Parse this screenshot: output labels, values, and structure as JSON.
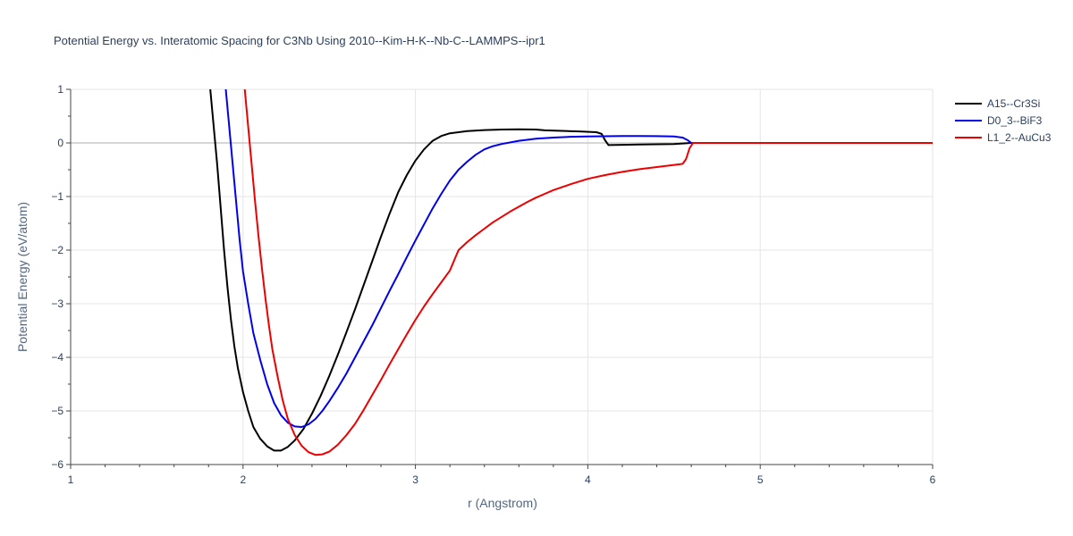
{
  "chart_data": {
    "type": "line",
    "title": "Potential Energy vs. Interatomic Spacing for C3Nb Using 2010--Kim-H-K--Nb-C--LAMMPS--ipr1",
    "xlabel": "r (Angstrom)",
    "ylabel": "Potential Energy (eV/atom)",
    "xlim": [
      1,
      6
    ],
    "ylim": [
      -6,
      1
    ],
    "xticks": [
      1,
      2,
      3,
      4,
      5,
      6
    ],
    "yticks": [
      1,
      0,
      -1,
      -2,
      -3,
      -4,
      -5,
      -6
    ],
    "ytick_labels": [
      "1",
      "0",
      "−1",
      "−2",
      "−3",
      "−4",
      "−5",
      "−6"
    ],
    "grid": true,
    "legend_position": "top-right",
    "series": [
      {
        "name": "A15--Cr3Si",
        "color": "#000000",
        "points": [
          [
            1.81,
            1.0
          ],
          [
            1.83,
            0.3
          ],
          [
            1.85,
            -0.4
          ],
          [
            1.87,
            -1.2
          ],
          [
            1.89,
            -2.0
          ],
          [
            1.91,
            -2.7
          ],
          [
            1.93,
            -3.3
          ],
          [
            1.95,
            -3.8
          ],
          [
            1.97,
            -4.2
          ],
          [
            2.0,
            -4.65
          ],
          [
            2.03,
            -5.0
          ],
          [
            2.06,
            -5.3
          ],
          [
            2.1,
            -5.52
          ],
          [
            2.14,
            -5.66
          ],
          [
            2.18,
            -5.74
          ],
          [
            2.22,
            -5.74
          ],
          [
            2.26,
            -5.67
          ],
          [
            2.3,
            -5.55
          ],
          [
            2.35,
            -5.34
          ],
          [
            2.4,
            -5.05
          ],
          [
            2.45,
            -4.72
          ],
          [
            2.5,
            -4.35
          ],
          [
            2.55,
            -3.95
          ],
          [
            2.6,
            -3.53
          ],
          [
            2.65,
            -3.1
          ],
          [
            2.7,
            -2.65
          ],
          [
            2.75,
            -2.2
          ],
          [
            2.8,
            -1.75
          ],
          [
            2.85,
            -1.32
          ],
          [
            2.9,
            -0.92
          ],
          [
            2.95,
            -0.6
          ],
          [
            3.0,
            -0.33
          ],
          [
            3.05,
            -0.12
          ],
          [
            3.1,
            0.04
          ],
          [
            3.15,
            0.13
          ],
          [
            3.2,
            0.18
          ],
          [
            3.3,
            0.22
          ],
          [
            3.4,
            0.24
          ],
          [
            3.5,
            0.25
          ],
          [
            3.6,
            0.255
          ],
          [
            3.7,
            0.25
          ],
          [
            3.75,
            0.235
          ],
          [
            3.85,
            0.225
          ],
          [
            3.95,
            0.215
          ],
          [
            4.05,
            0.2
          ],
          [
            4.08,
            0.17
          ],
          [
            4.1,
            0.05
          ],
          [
            4.12,
            -0.04
          ],
          [
            4.2,
            -0.035
          ],
          [
            4.3,
            -0.03
          ],
          [
            4.4,
            -0.025
          ],
          [
            4.5,
            -0.02
          ],
          [
            4.55,
            -0.01
          ],
          [
            4.6,
            0.0
          ],
          [
            5.0,
            0.0
          ],
          [
            6.0,
            0.0
          ]
        ]
      },
      {
        "name": "D0_3--BiF3",
        "color": "#0000ee",
        "points": [
          [
            1.9,
            1.0
          ],
          [
            1.92,
            0.3
          ],
          [
            1.94,
            -0.4
          ],
          [
            1.96,
            -1.1
          ],
          [
            1.98,
            -1.8
          ],
          [
            2.0,
            -2.4
          ],
          [
            2.03,
            -3.0
          ],
          [
            2.06,
            -3.55
          ],
          [
            2.1,
            -4.05
          ],
          [
            2.14,
            -4.5
          ],
          [
            2.18,
            -4.85
          ],
          [
            2.22,
            -5.08
          ],
          [
            2.26,
            -5.22
          ],
          [
            2.3,
            -5.29
          ],
          [
            2.34,
            -5.3
          ],
          [
            2.38,
            -5.25
          ],
          [
            2.42,
            -5.15
          ],
          [
            2.46,
            -5.0
          ],
          [
            2.5,
            -4.82
          ],
          [
            2.55,
            -4.57
          ],
          [
            2.6,
            -4.3
          ],
          [
            2.65,
            -4.0
          ],
          [
            2.7,
            -3.7
          ],
          [
            2.75,
            -3.4
          ],
          [
            2.8,
            -3.08
          ],
          [
            2.85,
            -2.76
          ],
          [
            2.9,
            -2.45
          ],
          [
            2.95,
            -2.13
          ],
          [
            3.0,
            -1.82
          ],
          [
            3.05,
            -1.52
          ],
          [
            3.1,
            -1.22
          ],
          [
            3.15,
            -0.95
          ],
          [
            3.2,
            -0.7
          ],
          [
            3.25,
            -0.5
          ],
          [
            3.3,
            -0.35
          ],
          [
            3.35,
            -0.22
          ],
          [
            3.4,
            -0.12
          ],
          [
            3.45,
            -0.06
          ],
          [
            3.5,
            -0.02
          ],
          [
            3.6,
            0.04
          ],
          [
            3.7,
            0.08
          ],
          [
            3.8,
            0.1
          ],
          [
            3.9,
            0.115
          ],
          [
            4.0,
            0.12
          ],
          [
            4.1,
            0.125
          ],
          [
            4.2,
            0.13
          ],
          [
            4.3,
            0.13
          ],
          [
            4.4,
            0.128
          ],
          [
            4.5,
            0.12
          ],
          [
            4.55,
            0.1
          ],
          [
            4.58,
            0.05
          ],
          [
            4.6,
            0.0
          ],
          [
            5.0,
            0.0
          ],
          [
            6.0,
            0.0
          ]
        ]
      },
      {
        "name": "L1_2--AuCu3",
        "color": "#ee0000",
        "points": [
          [
            2.01,
            1.0
          ],
          [
            2.03,
            0.3
          ],
          [
            2.05,
            -0.4
          ],
          [
            2.07,
            -1.1
          ],
          [
            2.09,
            -1.75
          ],
          [
            2.11,
            -2.35
          ],
          [
            2.13,
            -2.9
          ],
          [
            2.15,
            -3.4
          ],
          [
            2.17,
            -3.85
          ],
          [
            2.2,
            -4.35
          ],
          [
            2.23,
            -4.8
          ],
          [
            2.26,
            -5.15
          ],
          [
            2.3,
            -5.45
          ],
          [
            2.34,
            -5.65
          ],
          [
            2.38,
            -5.77
          ],
          [
            2.42,
            -5.82
          ],
          [
            2.46,
            -5.81
          ],
          [
            2.5,
            -5.76
          ],
          [
            2.55,
            -5.63
          ],
          [
            2.6,
            -5.45
          ],
          [
            2.65,
            -5.24
          ],
          [
            2.7,
            -4.98
          ],
          [
            2.75,
            -4.7
          ],
          [
            2.8,
            -4.42
          ],
          [
            2.85,
            -4.13
          ],
          [
            2.9,
            -3.85
          ],
          [
            2.95,
            -3.57
          ],
          [
            3.0,
            -3.3
          ],
          [
            3.05,
            -3.05
          ],
          [
            3.1,
            -2.82
          ],
          [
            3.15,
            -2.6
          ],
          [
            3.2,
            -2.38
          ],
          [
            3.23,
            -2.15
          ],
          [
            3.25,
            -2.0
          ],
          [
            3.3,
            -1.85
          ],
          [
            3.35,
            -1.72
          ],
          [
            3.4,
            -1.6
          ],
          [
            3.45,
            -1.48
          ],
          [
            3.5,
            -1.38
          ],
          [
            3.55,
            -1.28
          ],
          [
            3.6,
            -1.19
          ],
          [
            3.65,
            -1.1
          ],
          [
            3.7,
            -1.02
          ],
          [
            3.75,
            -0.95
          ],
          [
            3.8,
            -0.88
          ],
          [
            3.9,
            -0.77
          ],
          [
            4.0,
            -0.67
          ],
          [
            4.1,
            -0.6
          ],
          [
            4.2,
            -0.54
          ],
          [
            4.3,
            -0.49
          ],
          [
            4.4,
            -0.45
          ],
          [
            4.5,
            -0.41
          ],
          [
            4.55,
            -0.39
          ],
          [
            4.57,
            -0.3
          ],
          [
            4.59,
            -0.1
          ],
          [
            4.61,
            0.0
          ],
          [
            5.0,
            0.0
          ],
          [
            6.0,
            0.0
          ]
        ]
      }
    ]
  }
}
